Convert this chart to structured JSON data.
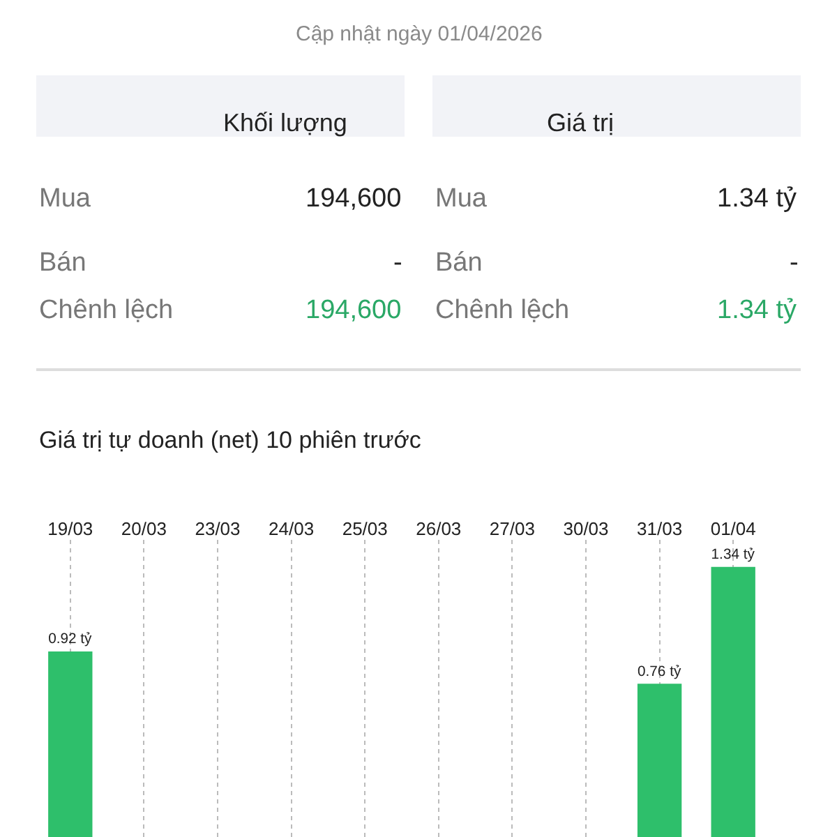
{
  "chart_data": [
    {
      "type": "other",
      "title": "Cập nhật ngày 01/04/2026",
      "categories": [
        "Khối lượng",
        "Giá trị"
      ],
      "annotations": [
        "Mua",
        "194,600",
        "Mua",
        "1.34 tỷ",
        "Bán",
        "-",
        "Bán",
        "-",
        "Chênh lệch",
        "194,600",
        "Chênh lệch",
        "1.34 tỷ"
      ]
    },
    {
      "type": "bar",
      "title": "Giá trị tự doanh (net) 10 phiên trước",
      "categories": [
        "19/03",
        "20/03",
        "23/03",
        "24/03",
        "25/03",
        "26/03",
        "27/03",
        "30/03",
        "31/03",
        "01/04"
      ],
      "values": [
        0.92,
        null,
        null,
        null,
        null,
        null,
        null,
        null,
        0.76,
        1.34
      ],
      "value_labels": [
        "0.92 tỷ",
        null,
        null,
        null,
        null,
        null,
        null,
        null,
        "0.76 tỷ",
        "1.34 tỷ"
      ],
      "color": "#2ebf6b",
      "grid": "x",
      "legend": false
    }
  ]
}
